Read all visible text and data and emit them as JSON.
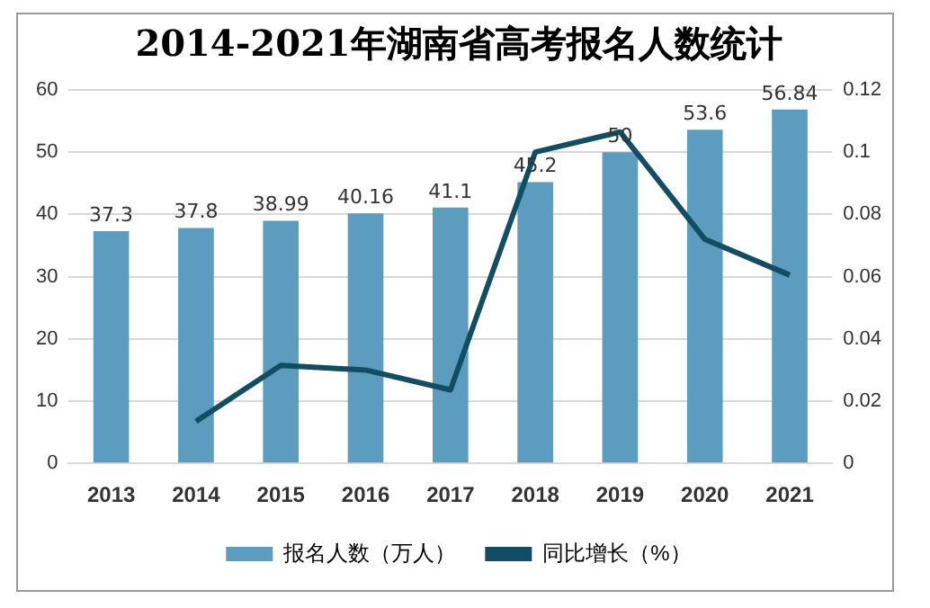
{
  "chart_data": {
    "type": "bar",
    "title": "2014-2021年湖南省高考报名人数统计",
    "categories": [
      "2013",
      "2014",
      "2015",
      "2016",
      "2017",
      "2018",
      "2019",
      "2020",
      "2021"
    ],
    "series": [
      {
        "name": "报名人数（万人）",
        "color": "#5b9cbf",
        "values": [
          37.3,
          37.8,
          38.99,
          40.16,
          41.1,
          45.2,
          50,
          53.6,
          56.84
        ],
        "value_labels": [
          "37.3",
          "37.8",
          "38.99",
          "40.16",
          "41.1",
          "45.2",
          "50",
          "53.6",
          "56.84"
        ]
      },
      {
        "name": "同比增长（%）",
        "type": "line",
        "axis": "y2",
        "color": "#124e63",
        "values": [
          null,
          0.0135,
          0.0315,
          0.03,
          0.0236,
          0.1,
          0.1065,
          0.072,
          0.0605
        ]
      }
    ],
    "ylim": [
      0,
      60
    ],
    "yticks": [
      0,
      10,
      20,
      30,
      40,
      50,
      60
    ],
    "y2lim": [
      0,
      0.12
    ],
    "y2ticks": [
      0,
      0.02,
      0.04,
      0.06,
      0.08,
      0.1,
      0.12
    ],
    "grid": "y",
    "legend": "bottom",
    "marker": "none",
    "line_style": "solid"
  }
}
